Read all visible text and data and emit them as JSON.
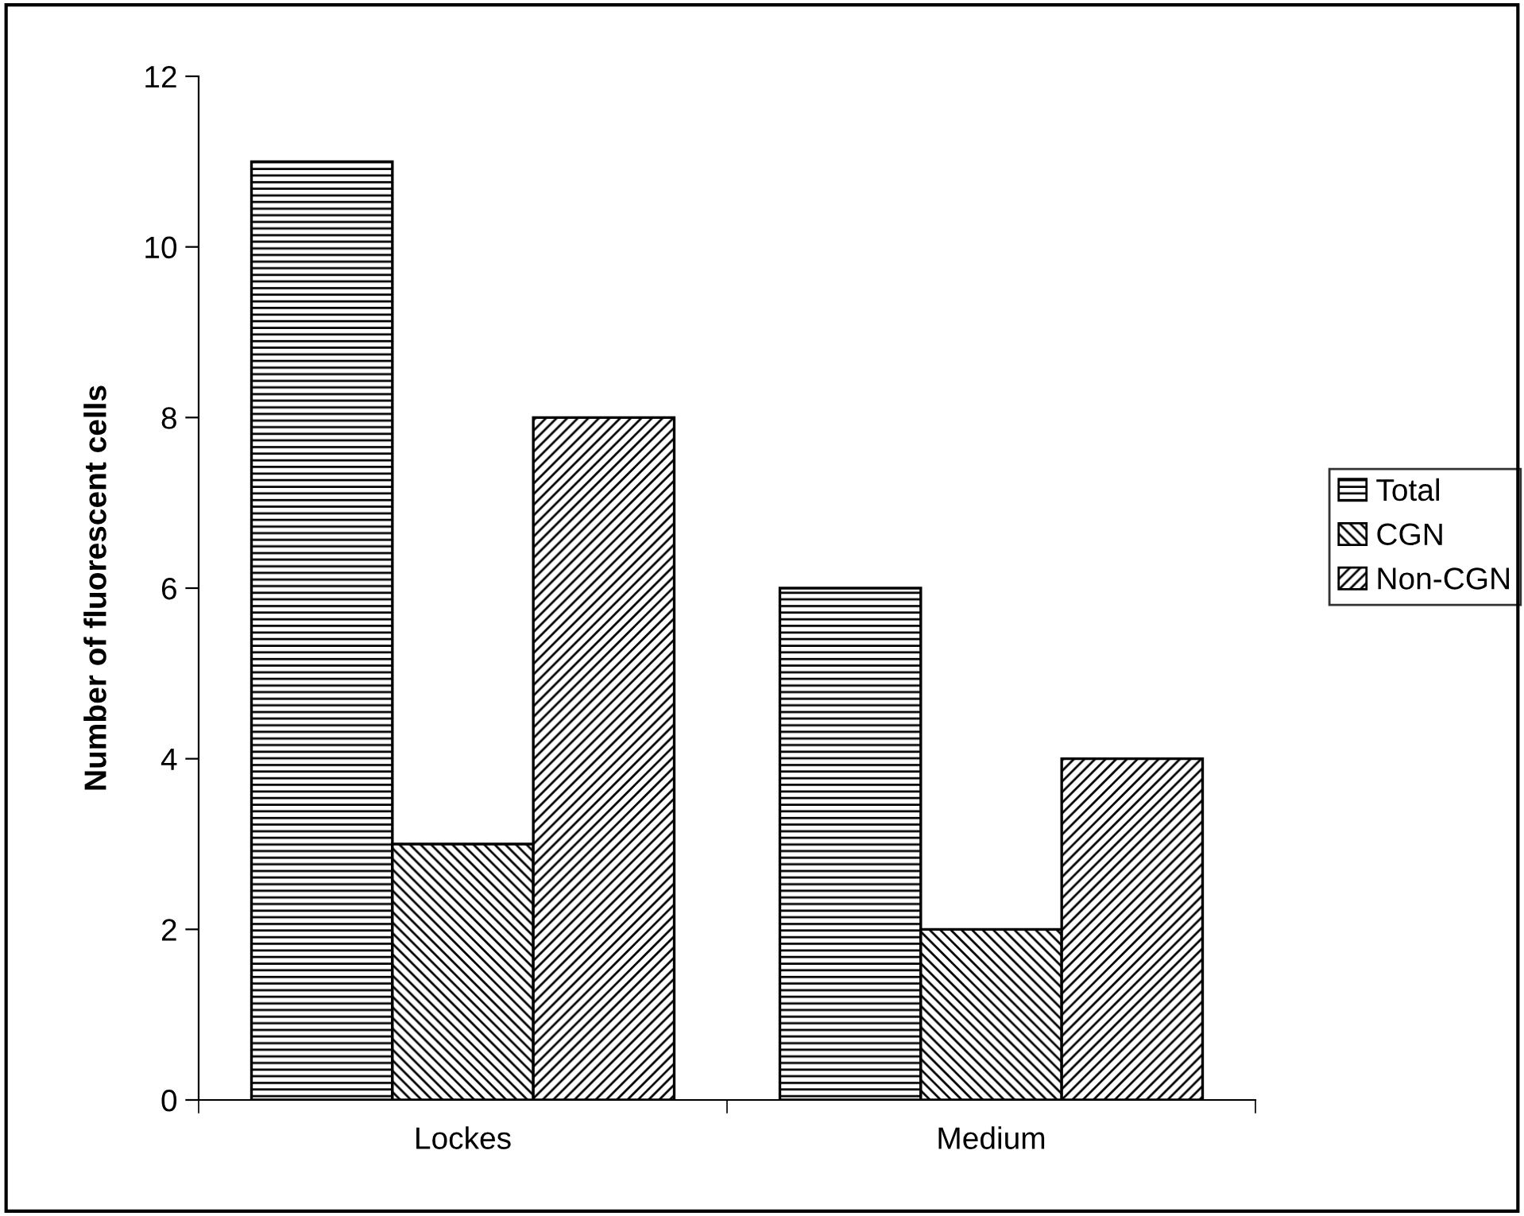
{
  "chart_data": {
    "type": "bar",
    "ylabel": "Number of fluorescent cells",
    "categories": [
      "Lockes",
      "Medium"
    ],
    "series": [
      {
        "name": "Total",
        "color": "#000000",
        "values": [
          11,
          6
        ]
      },
      {
        "name": "CGN",
        "color": "#000000",
        "values": [
          3,
          2
        ]
      },
      {
        "name": "Non-CGN",
        "color": "#000000",
        "values": [
          8,
          4
        ]
      }
    ],
    "ylim": [
      0,
      12
    ],
    "yticks": [
      0,
      2,
      4,
      6,
      8,
      10,
      12
    ],
    "grid": false,
    "legend": "right"
  }
}
